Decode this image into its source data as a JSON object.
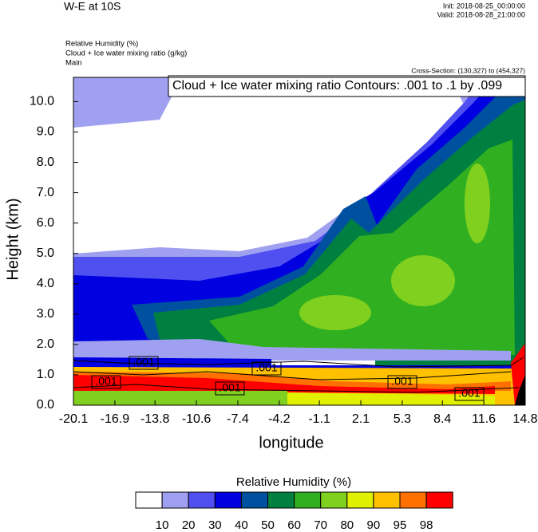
{
  "header": {
    "title": "W-E at 10S",
    "init": "Init: 2018-08-25_00:00:00",
    "valid": "Valid: 2018-08-28_21:00:00",
    "fields": [
      "Relative Humidity   (%)",
      "Cloud + Ice water mixing ratio   (g/kg)",
      "Main"
    ],
    "cross_section": "Cross-Section: (130,327) to (454,327)"
  },
  "chart_data": {
    "type": "contour",
    "contour_note": "Cloud + Ice water mixing ratio Contours: .001 to .1 by .099",
    "x_label": "longitude",
    "y_label": "Height (km)",
    "xlim": [
      -20.1,
      14.8
    ],
    "xticks": [
      -20.1,
      -16.9,
      -13.8,
      -10.6,
      -7.4,
      -4.2,
      -1.1,
      2.1,
      5.3,
      8.4,
      11.6,
      14.8
    ],
    "ylim": [
      0,
      10.8
    ],
    "yticks": [
      {
        "value": 0,
        "label": "0.0"
      },
      {
        "value": 1,
        "label": "1.0"
      },
      {
        "value": 2,
        "label": "2.0"
      },
      {
        "value": 3,
        "label": "3.0"
      },
      {
        "value": 4,
        "label": "4.0"
      },
      {
        "value": 5,
        "label": "5.0"
      },
      {
        "value": 6,
        "label": "6.0"
      },
      {
        "value": 7,
        "label": "7.0"
      },
      {
        "value": 8,
        "label": "8.0"
      },
      {
        "value": 9,
        "label": "9.0"
      },
      {
        "value": 10,
        "label": "10.0"
      }
    ],
    "line_labels": [
      ".001",
      ".001",
      ".001",
      ".001",
      ".001",
      ".001"
    ],
    "colorbar": {
      "title": "Relative Humidity  (%)",
      "levels": [
        10,
        20,
        30,
        40,
        50,
        60,
        70,
        80,
        90,
        95,
        98
      ],
      "colors": [
        "#ffffff",
        "#a0a0f0",
        "#5050f0",
        "#0000e0",
        "#0050a0",
        "#008040",
        "#30b020",
        "#80d020",
        "#e0f000",
        "#ffc000",
        "#ff7000",
        "#ff0000"
      ]
    }
  }
}
